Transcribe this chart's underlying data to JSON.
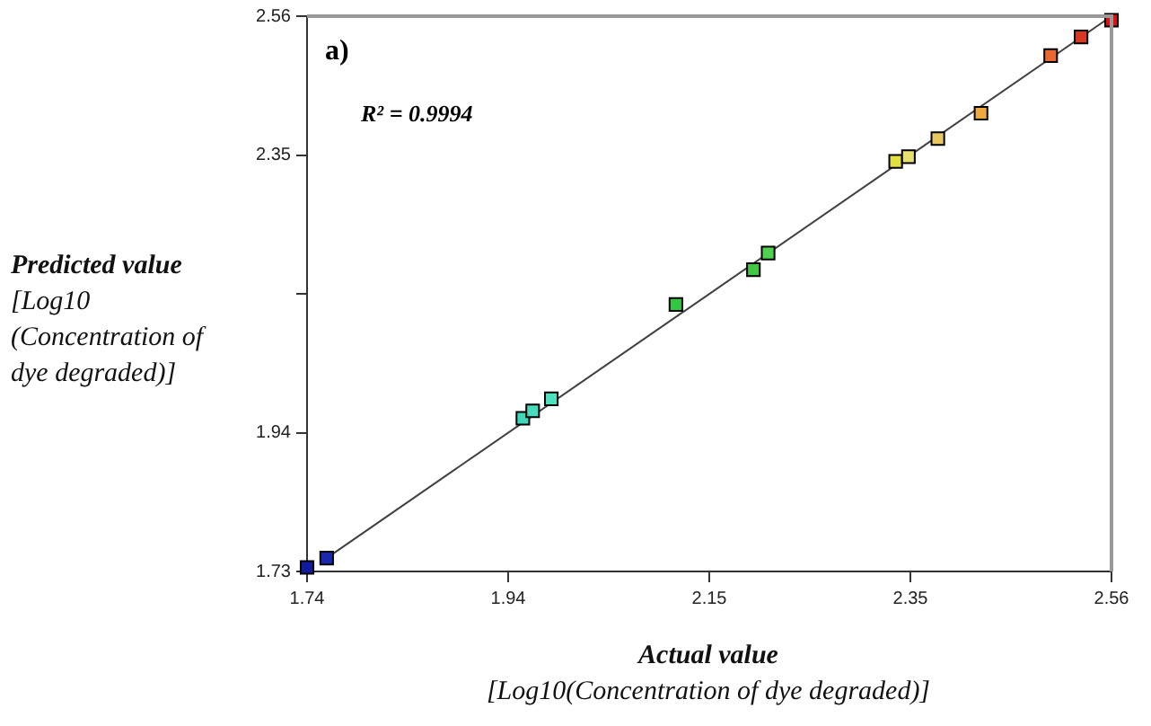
{
  "chart_data": {
    "type": "scatter",
    "xlabel": "Actual value\n[Log10(Concentration of dye degraded)]",
    "ylabel": "Predicted value\n[Log10\n(Concentration of\ndye degraded)]",
    "annotations": [
      "a)",
      "R² = 0.9994"
    ],
    "xlim": [
      1.74,
      2.56
    ],
    "ylim": [
      1.73,
      2.56
    ],
    "xticks": [
      1.74,
      {
        "value": 1.945,
        "label": "1.94"
      },
      2.15,
      {
        "value": 2.355,
        "label": "2.35"
      },
      2.56
    ],
    "yticks": [
      1.73,
      {
        "value": 1.9375,
        "label": "1.94"
      },
      {
        "value": 2.145,
        "label": null
      },
      {
        "value": 2.3525,
        "label": "2.35"
      },
      2.56
    ],
    "grid": false,
    "legend": false,
    "marker": "square",
    "series": [
      {
        "type": "line",
        "color": "#404040",
        "marker": "none",
        "line_style": "solid",
        "x": [
          1.76,
          2.56
        ],
        "values": [
          1.75,
          2.56
        ]
      },
      {
        "x": [
          1.74,
          1.76,
          1.96,
          1.97,
          1.989,
          2.116,
          2.195,
          2.21,
          2.34,
          2.353,
          2.383,
          2.427,
          2.498,
          2.529,
          2.56
        ],
        "values": [
          1.736,
          1.75,
          1.959,
          1.97,
          1.988,
          2.129,
          2.181,
          2.206,
          2.343,
          2.35,
          2.377,
          2.415,
          2.501,
          2.529,
          2.554
        ],
        "colors": [
          "#101c9c",
          "#1a28b0",
          "#40d8b8",
          "#48dcbc",
          "#50e0c0",
          "#30c840",
          "#40c840",
          "#50d050",
          "#e0e040",
          "#e8e070",
          "#e8c860",
          "#f0a840",
          "#e86830",
          "#d83820",
          "#e01010"
        ]
      }
    ]
  }
}
